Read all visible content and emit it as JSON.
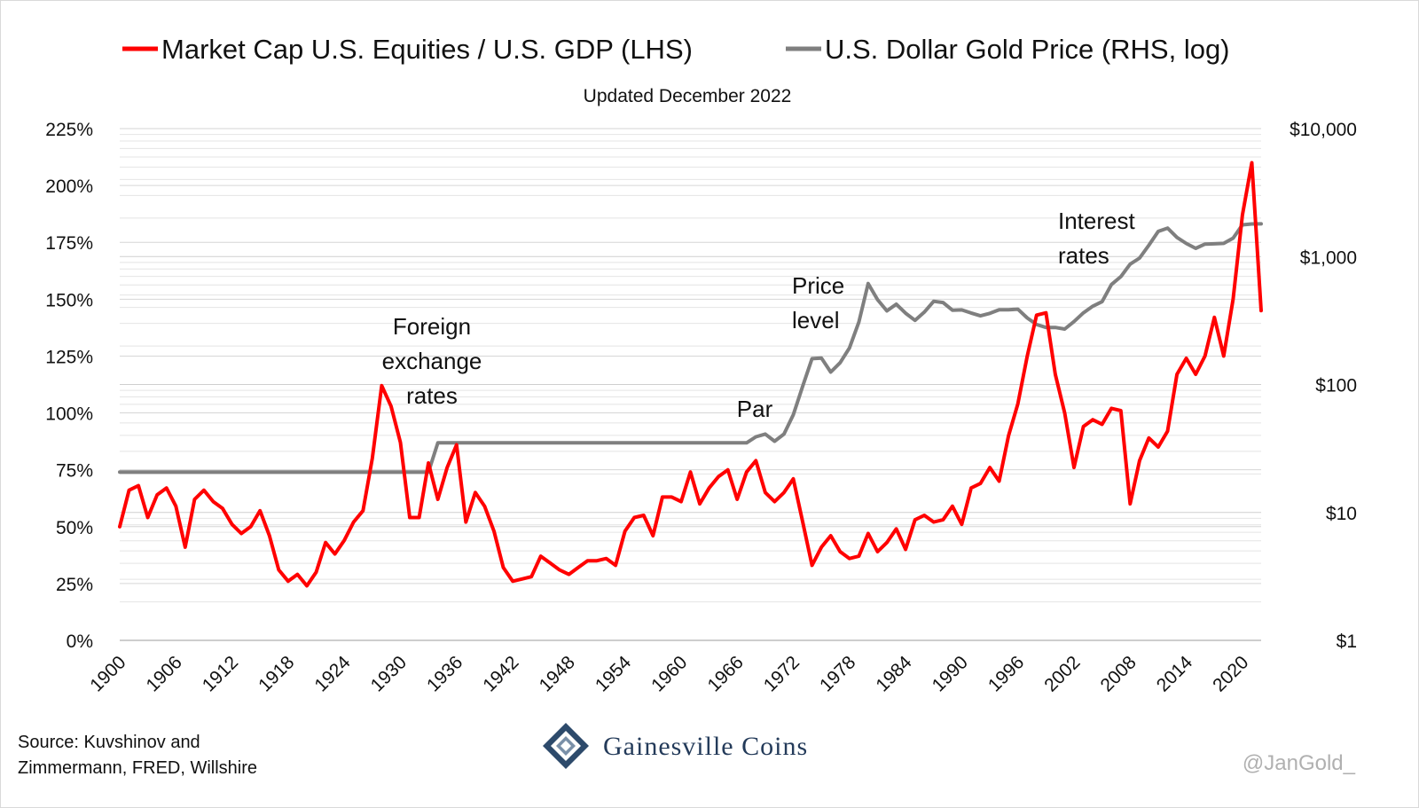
{
  "chart_data": {
    "type": "line",
    "title": "",
    "subtitle": "Updated December 2022",
    "legend_position": "top",
    "grid": true,
    "colors": {
      "equities": "#ff0000",
      "gold": "#7f7f7f"
    },
    "x_ticks": [
      "1900",
      "1906",
      "1912",
      "1918",
      "1924",
      "1930",
      "1936",
      "1942",
      "1948",
      "1954",
      "1960",
      "1966",
      "1972",
      "1978",
      "1984",
      "1990",
      "1996",
      "2002",
      "2008",
      "2014",
      "2020"
    ],
    "y_left": {
      "ylim": [
        0,
        225
      ],
      "tick_labels": [
        "0%",
        "25%",
        "50%",
        "75%",
        "100%",
        "125%",
        "150%",
        "175%",
        "200%",
        "225%"
      ],
      "tick_values": [
        0,
        25,
        50,
        75,
        100,
        125,
        150,
        175,
        200,
        225
      ]
    },
    "y_right": {
      "scale": "log",
      "ylim": [
        1,
        10000
      ],
      "tick_labels": [
        "$1",
        "$10",
        "$100",
        "$1,000",
        "$10,000"
      ],
      "tick_values": [
        1,
        10,
        100,
        1000,
        10000
      ]
    },
    "series": [
      {
        "name": "Market Cap U.S. Equities / U.S. GDP (LHS)",
        "axis": "left",
        "x": [
          1900,
          1901,
          1902,
          1903,
          1904,
          1905,
          1906,
          1907,
          1908,
          1909,
          1910,
          1911,
          1912,
          1913,
          1914,
          1915,
          1916,
          1917,
          1918,
          1919,
          1920,
          1921,
          1922,
          1923,
          1924,
          1925,
          1926,
          1927,
          1928,
          1929,
          1930,
          1931,
          1932,
          1933,
          1934,
          1935,
          1936,
          1937,
          1938,
          1939,
          1940,
          1941,
          1942,
          1943,
          1944,
          1945,
          1946,
          1947,
          1948,
          1949,
          1950,
          1951,
          1952,
          1953,
          1954,
          1955,
          1956,
          1957,
          1958,
          1959,
          1960,
          1961,
          1962,
          1963,
          1964,
          1965,
          1966,
          1967,
          1968,
          1969,
          1970,
          1971,
          1972,
          1973,
          1974,
          1975,
          1976,
          1977,
          1978,
          1979,
          1980,
          1981,
          1982,
          1983,
          1984,
          1985,
          1986,
          1987,
          1988,
          1989,
          1990,
          1991,
          1992,
          1993,
          1994,
          1995,
          1996,
          1997,
          1998,
          1999,
          2000,
          2001,
          2002,
          2003,
          2004,
          2005,
          2006,
          2007,
          2008,
          2009,
          2010,
          2011,
          2012,
          2013,
          2014,
          2015,
          2016,
          2017,
          2018,
          2019,
          2020,
          2021,
          2022
        ],
        "y": [
          50,
          66,
          68,
          54,
          64,
          67,
          59,
          41,
          62,
          66,
          61,
          58,
          51,
          47,
          50,
          57,
          46,
          31,
          26,
          29,
          24,
          30,
          43,
          38,
          44,
          52,
          57,
          80,
          112,
          103,
          87,
          54,
          54,
          78,
          62,
          76,
          86,
          52,
          65,
          59,
          48,
          32,
          26,
          27,
          28,
          37,
          34,
          31,
          29,
          32,
          35,
          35,
          36,
          33,
          48,
          54,
          55,
          46,
          63,
          63,
          61,
          74,
          60,
          67,
          72,
          75,
          62,
          74,
          79,
          65,
          61,
          65,
          71,
          52,
          33,
          41,
          46,
          39,
          36,
          37,
          47,
          39,
          43,
          49,
          40,
          53,
          55,
          52,
          53,
          59,
          51,
          67,
          69,
          76,
          70,
          90,
          104,
          125,
          143,
          144,
          117,
          100,
          76,
          94,
          97,
          95,
          102,
          101,
          60,
          79,
          89,
          85,
          92,
          117,
          124,
          117,
          125,
          142,
          125,
          150,
          187,
          210,
          145
        ]
      },
      {
        "name": "U.S. Dollar Gold Price (RHS, log)",
        "axis": "right",
        "x": [
          1900,
          1933,
          1934,
          1967,
          1968,
          1969,
          1970,
          1971,
          1972,
          1973,
          1974,
          1975,
          1976,
          1977,
          1978,
          1979,
          1980,
          1981,
          1982,
          1983,
          1984,
          1985,
          1986,
          1987,
          1988,
          1989,
          1990,
          1991,
          1992,
          1993,
          1994,
          1995,
          1996,
          1997,
          1998,
          1999,
          2000,
          2001,
          2002,
          2003,
          2004,
          2005,
          2006,
          2007,
          2008,
          2009,
          2010,
          2011,
          2012,
          2013,
          2014,
          2015,
          2016,
          2017,
          2018,
          2019,
          2020,
          2021,
          2022
        ],
        "y": [
          20.67,
          20.67,
          35,
          35,
          39,
          41,
          36,
          41,
          58,
          97,
          159,
          161,
          125,
          148,
          193,
          307,
          615,
          460,
          376,
          424,
          361,
          317,
          368,
          447,
          437,
          381,
          383,
          362,
          344,
          360,
          384,
          384,
          388,
          331,
          294,
          279,
          279,
          271,
          310,
          363,
          409,
          444,
          604,
          697,
          872,
          972,
          1225,
          1572,
          1669,
          1411,
          1266,
          1160,
          1251,
          1257,
          1268,
          1393,
          1770,
          1799,
          1800
        ]
      }
    ],
    "annotations": [
      {
        "lines": [
          "Foreign",
          "exchange",
          "rates"
        ]
      },
      {
        "lines": [
          "Par"
        ]
      },
      {
        "lines": [
          "Price",
          "level"
        ]
      },
      {
        "lines": [
          "Interest",
          "rates"
        ]
      }
    ]
  },
  "footer": {
    "source_line1": "Source: Kuvshinov and",
    "source_line2": "Zimmermann, FRED, Willshire",
    "brand": "Gainesville Coins",
    "handle": "@JanGold_"
  }
}
